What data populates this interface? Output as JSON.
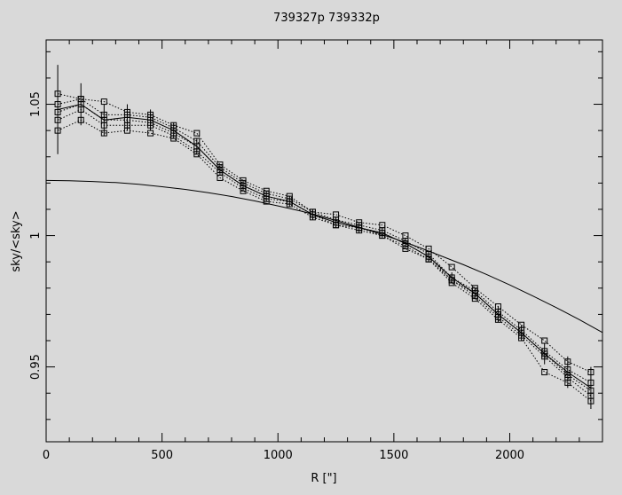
{
  "title": "739327p    739332p",
  "chart_data": {
    "type": "line",
    "title": "739327p    739332p",
    "xlabel": "R [\"]",
    "ylabel": "sky/<sky>",
    "xlim": [
      0,
      2400
    ],
    "ylim": [
      0.9215,
      1.0745
    ],
    "xticks": [
      0,
      500,
      1000,
      1500,
      2000
    ],
    "xtick_labels": [
      "0",
      "500",
      "1000",
      "1500",
      "2000"
    ],
    "yticks": [
      0.95,
      1.0,
      1.05
    ],
    "ytick_labels": [
      "0.95",
      "1",
      "1.05"
    ],
    "grid": false,
    "x": [
      50,
      150,
      250,
      350,
      450,
      550,
      650,
      750,
      850,
      950,
      1050,
      1150,
      1250,
      1350,
      1450,
      1550,
      1650,
      1750,
      1850,
      1950,
      2050,
      2150,
      2250,
      2350
    ],
    "series": [
      {
        "values": [
          1.054,
          1.052,
          1.051,
          1.047,
          1.046,
          1.042,
          1.039,
          1.027,
          1.021,
          1.017,
          1.015,
          1.009,
          1.008,
          1.005,
          1.004,
          1.0,
          0.995,
          0.988,
          0.98,
          0.973,
          0.966,
          0.96,
          0.952,
          0.948
        ]
      },
      {
        "values": [
          1.05,
          1.052,
          1.046,
          1.046,
          1.045,
          1.041,
          1.036,
          1.026,
          1.02,
          1.016,
          1.014,
          1.009,
          1.006,
          1.004,
          1.002,
          0.998,
          0.993,
          0.984,
          0.979,
          0.971,
          0.964,
          0.956,
          0.949,
          0.944
        ]
      },
      {
        "values": [
          1.047,
          1.05,
          1.044,
          1.044,
          1.043,
          1.039,
          1.034,
          1.025,
          1.019,
          1.015,
          1.013,
          1.008,
          1.005,
          1.003,
          1.001,
          0.997,
          0.992,
          0.983,
          0.978,
          0.97,
          0.963,
          0.955,
          0.947,
          0.941
        ]
      },
      {
        "values": [
          1.044,
          1.048,
          1.042,
          1.042,
          1.042,
          1.038,
          1.032,
          1.024,
          1.018,
          1.014,
          1.013,
          1.008,
          1.004,
          1.003,
          1.0,
          0.996,
          0.991,
          0.983,
          0.977,
          0.969,
          0.962,
          0.954,
          0.946,
          0.939
        ]
      },
      {
        "values": [
          1.04,
          1.044,
          1.039,
          1.04,
          1.039,
          1.037,
          1.031,
          1.022,
          1.017,
          1.013,
          1.012,
          1.007,
          1.004,
          1.002,
          1.0,
          0.995,
          0.991,
          0.982,
          0.976,
          0.968,
          0.961,
          0.948,
          0.944,
          0.937
        ]
      }
    ],
    "mean_with_errors": {
      "values": [
        1.048,
        1.05,
        1.044,
        1.045,
        1.044,
        1.04,
        1.034,
        1.025,
        1.019,
        1.015,
        1.013,
        1.008,
        1.005,
        1.003,
        1.001,
        0.997,
        0.992,
        0.984,
        0.978,
        0.97,
        0.963,
        0.955,
        0.948,
        0.942
      ],
      "errors": [
        0.017,
        0.008,
        0.006,
        0.005,
        0.004,
        0.003,
        0.003,
        0.002,
        0.002,
        0.002,
        0.002,
        0.002,
        0.002,
        0.002,
        0.002,
        0.002,
        0.002,
        0.002,
        0.002,
        0.003,
        0.003,
        0.004,
        0.006,
        0.008
      ]
    },
    "model_curve": {
      "x": [
        0,
        100,
        200,
        300,
        400,
        500,
        600,
        700,
        800,
        900,
        1000,
        1100,
        1200,
        1300,
        1400,
        1500,
        1600,
        1700,
        1800,
        1900,
        2000,
        2100,
        2200,
        2300,
        2400
      ],
      "values": [
        1.021,
        1.0209,
        1.0206,
        1.0202,
        1.0195,
        1.0186,
        1.0176,
        1.0163,
        1.0149,
        1.0132,
        1.0113,
        1.0093,
        1.007,
        1.0045,
        1.0018,
        0.9989,
        0.9958,
        0.9924,
        0.9889,
        0.9852,
        0.9812,
        0.977,
        0.9726,
        0.968,
        0.9631
      ]
    }
  }
}
